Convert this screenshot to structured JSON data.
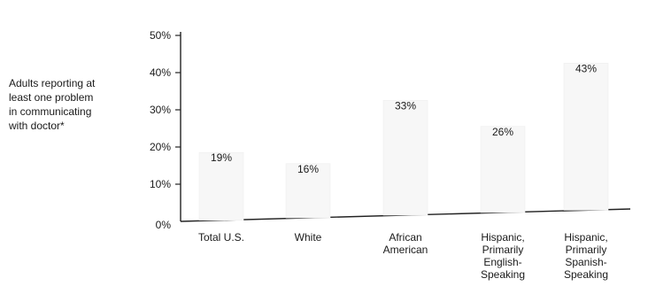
{
  "chart_data": {
    "type": "bar",
    "title": "",
    "ylabel": "Adults reporting at least one problem in communicating with doctor*",
    "ylabel_lines": [
      "Adults reporting at",
      "least one problem",
      "in communicating",
      "with doctor*"
    ],
    "xlabel": "",
    "ylim": [
      0,
      50
    ],
    "yticks": [
      "0%",
      "10%",
      "20%",
      "30%",
      "40%",
      "50%"
    ],
    "ytick_values": [
      0,
      10,
      20,
      30,
      40,
      50
    ],
    "categories": [
      "Total U.S.",
      "White",
      "African American",
      "Hispanic, Primarily English-Speaking",
      "Hispanic, Primarily Spanish-Speaking"
    ],
    "category_lines": [
      [
        "Total U.S."
      ],
      [
        "White"
      ],
      [
        "African",
        "American"
      ],
      [
        "Hispanic,",
        "Primarily",
        "English-",
        "Speaking"
      ],
      [
        "Hispanic,",
        "Primarily",
        "Spanish-",
        "Speaking"
      ]
    ],
    "values": [
      19,
      16,
      33,
      26,
      43
    ],
    "value_labels": [
      "19%",
      "16%",
      "33%",
      "26%",
      "43%"
    ],
    "grid": false,
    "legend": "none"
  }
}
